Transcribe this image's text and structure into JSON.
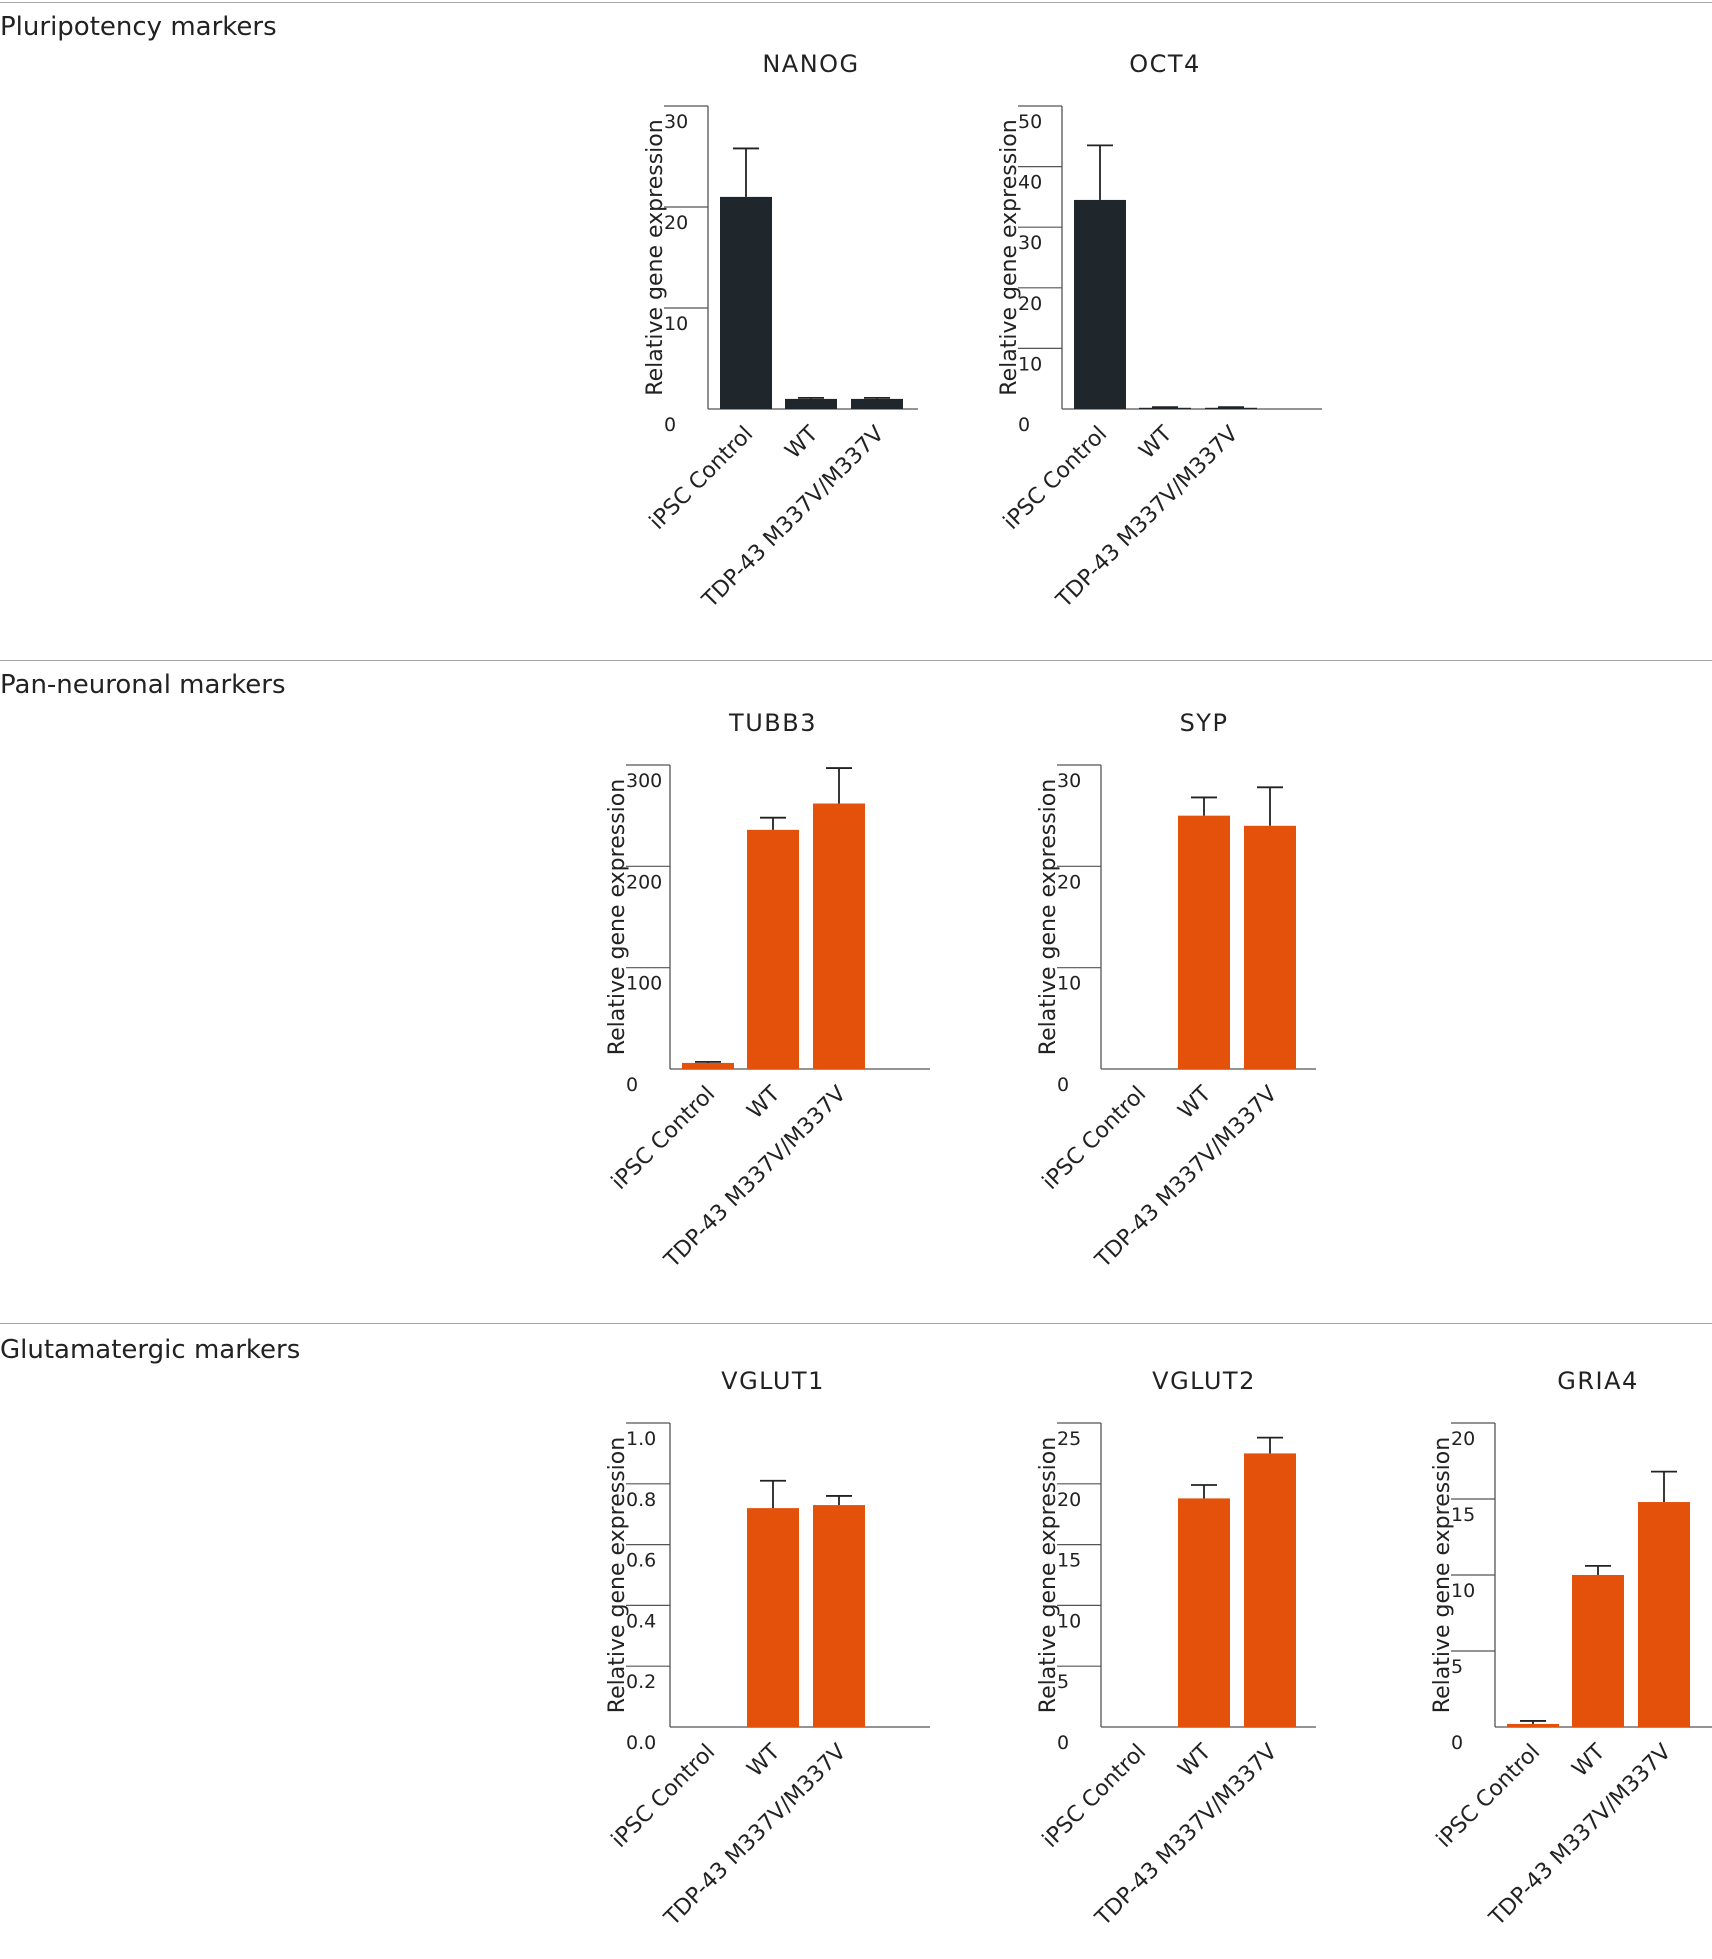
{
  "sections": [
    {
      "title": "Pluripotency markers"
    },
    {
      "title": "Pan-neuronal markers"
    },
    {
      "title": "Glutamatergic markers"
    }
  ],
  "colors": {
    "pluripotency_bar": "#1f262c",
    "neuronal_bar": "#e3510a",
    "axis": "#555555",
    "rule": "#a8a8a8"
  },
  "chart_data": [
    {
      "type": "bar",
      "section": 0,
      "title": "NANOG",
      "ylabel": "Relative gene expression",
      "categories": [
        "iPSC Control",
        "WT",
        "TDP-43 M337V/M337V"
      ],
      "values": [
        21,
        1,
        1
      ],
      "errors": [
        4.8,
        0.1,
        0.1
      ],
      "ylim": [
        0,
        30
      ],
      "yticks": [
        0,
        10,
        20,
        30
      ],
      "tick_labels": [
        "0",
        "10",
        "20",
        "30"
      ]
    },
    {
      "type": "bar",
      "section": 0,
      "title": "OCT4",
      "ylabel": "Relative gene expression",
      "categories": [
        "iPSC Control",
        "WT",
        "TDP-43 M337V/M337V"
      ],
      "values": [
        34.5,
        0.2,
        0.2
      ],
      "errors": [
        9,
        0.1,
        0.1
      ],
      "ylim": [
        0,
        50
      ],
      "yticks": [
        0,
        10,
        20,
        30,
        40,
        50
      ],
      "tick_labels": [
        "0",
        "10",
        "20",
        "30",
        "40",
        "50"
      ]
    },
    {
      "type": "bar",
      "section": 1,
      "title": "TUBB3",
      "ylabel": "Relative gene expression",
      "categories": [
        "iPSC Control",
        "WT",
        "TDP-43 M337V/M337V"
      ],
      "values": [
        6,
        236,
        262
      ],
      "errors": [
        1,
        12,
        35
      ],
      "ylim": [
        0,
        300
      ],
      "yticks": [
        0,
        100,
        200,
        300
      ],
      "tick_labels": [
        "0",
        "100",
        "200",
        "300"
      ]
    },
    {
      "type": "bar",
      "section": 1,
      "title": "SYP",
      "ylabel": "Relative gene expression",
      "categories": [
        "iPSC Control",
        "WT",
        "TDP-43 M337V/M337V"
      ],
      "values": [
        0,
        25,
        24
      ],
      "errors": [
        0,
        1.8,
        3.8
      ],
      "ylim": [
        0,
        30
      ],
      "yticks": [
        0,
        10,
        20,
        30
      ],
      "tick_labels": [
        "0",
        "10",
        "20",
        "30"
      ]
    },
    {
      "type": "bar",
      "section": 2,
      "title": "VGLUT1",
      "ylabel": "Relative gene expression",
      "categories": [
        "iPSC Control",
        "WT",
        "TDP-43 M337V/M337V"
      ],
      "values": [
        0,
        0.72,
        0.73
      ],
      "errors": [
        0,
        0.09,
        0.03
      ],
      "ylim": [
        0,
        1.0
      ],
      "yticks": [
        0,
        0.2,
        0.4,
        0.6,
        0.8,
        1.0
      ],
      "tick_labels": [
        "0.0",
        "0.2",
        "0.4",
        "0.6",
        "0.8",
        "1.0"
      ]
    },
    {
      "type": "bar",
      "section": 2,
      "title": "VGLUT2",
      "ylabel": "Relative gene expression",
      "categories": [
        "iPSC Control",
        "WT",
        "TDP-43 M337V/M337V"
      ],
      "values": [
        0,
        18.8,
        22.5
      ],
      "errors": [
        0,
        1.1,
        1.3
      ],
      "ylim": [
        0,
        25
      ],
      "yticks": [
        0,
        5,
        10,
        15,
        20,
        25
      ],
      "tick_labels": [
        "0",
        "5",
        "10",
        "15",
        "20",
        "25"
      ]
    },
    {
      "type": "bar",
      "section": 2,
      "title": "GRIA4",
      "ylabel": "Relative gene expression",
      "categories": [
        "iPSC Control",
        "WT",
        "TDP-43 M337V/M337V"
      ],
      "values": [
        0.2,
        10,
        14.8
      ],
      "errors": [
        0.2,
        0.6,
        2
      ],
      "ylim": [
        0,
        20
      ],
      "yticks": [
        0,
        5,
        10,
        15,
        20
      ],
      "tick_labels": [
        "0",
        "5",
        "10",
        "15",
        "20"
      ]
    }
  ]
}
